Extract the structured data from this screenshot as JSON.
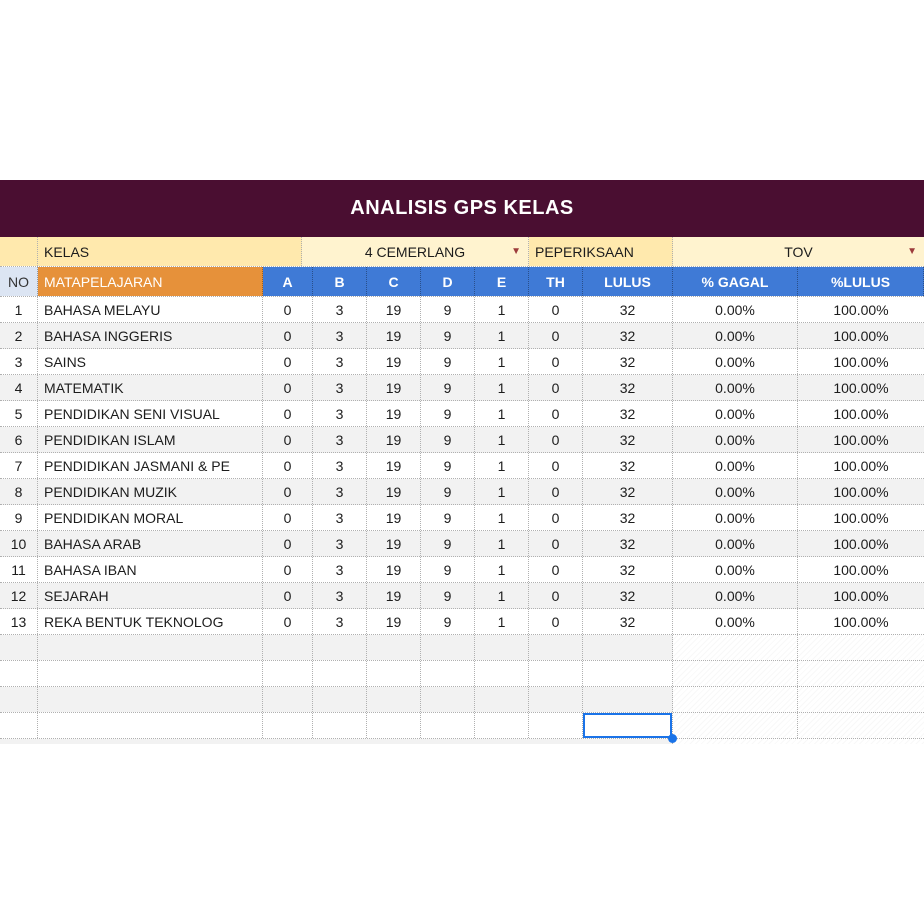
{
  "banner": {
    "title": "ANALISIS GPS KELAS"
  },
  "icons": {
    "dropdown": "▼"
  },
  "filter_row": {
    "kelas_label": "KELAS",
    "kelas_value": "4 CEMERLANG",
    "exam_label": "PEPERIKSAAN",
    "exam_value": "TOV"
  },
  "table": {
    "headers": [
      "NO",
      "MATAPELAJARAN",
      "A",
      "B",
      "C",
      "D",
      "E",
      "TH",
      "LULUS",
      "% GAGAL",
      "%LULUS"
    ],
    "rows": [
      {
        "no": "1",
        "subject": "BAHASA MELAYU",
        "a": "0",
        "b": "3",
        "c": "19",
        "d": "9",
        "e": "1",
        "th": "0",
        "lulus": "32",
        "gagal": "0.00%",
        "lulus_pct": "100.00%"
      },
      {
        "no": "2",
        "subject": "BAHASA INGGERIS",
        "a": "0",
        "b": "3",
        "c": "19",
        "d": "9",
        "e": "1",
        "th": "0",
        "lulus": "32",
        "gagal": "0.00%",
        "lulus_pct": "100.00%"
      },
      {
        "no": "3",
        "subject": "SAINS",
        "a": "0",
        "b": "3",
        "c": "19",
        "d": "9",
        "e": "1",
        "th": "0",
        "lulus": "32",
        "gagal": "0.00%",
        "lulus_pct": "100.00%"
      },
      {
        "no": "4",
        "subject": "MATEMATIK",
        "a": "0",
        "b": "3",
        "c": "19",
        "d": "9",
        "e": "1",
        "th": "0",
        "lulus": "32",
        "gagal": "0.00%",
        "lulus_pct": "100.00%"
      },
      {
        "no": "5",
        "subject": "PENDIDIKAN SENI VISUAL",
        "a": "0",
        "b": "3",
        "c": "19",
        "d": "9",
        "e": "1",
        "th": "0",
        "lulus": "32",
        "gagal": "0.00%",
        "lulus_pct": "100.00%"
      },
      {
        "no": "6",
        "subject": "PENDIDIKAN ISLAM",
        "a": "0",
        "b": "3",
        "c": "19",
        "d": "9",
        "e": "1",
        "th": "0",
        "lulus": "32",
        "gagal": "0.00%",
        "lulus_pct": "100.00%"
      },
      {
        "no": "7",
        "subject": "PENDIDIKAN JASMANI & PE",
        "a": "0",
        "b": "3",
        "c": "19",
        "d": "9",
        "e": "1",
        "th": "0",
        "lulus": "32",
        "gagal": "0.00%",
        "lulus_pct": "100.00%"
      },
      {
        "no": "8",
        "subject": "PENDIDIKAN MUZIK",
        "a": "0",
        "b": "3",
        "c": "19",
        "d": "9",
        "e": "1",
        "th": "0",
        "lulus": "32",
        "gagal": "0.00%",
        "lulus_pct": "100.00%"
      },
      {
        "no": "9",
        "subject": "PENDIDIKAN MORAL",
        "a": "0",
        "b": "3",
        "c": "19",
        "d": "9",
        "e": "1",
        "th": "0",
        "lulus": "32",
        "gagal": "0.00%",
        "lulus_pct": "100.00%"
      },
      {
        "no": "10",
        "subject": "BAHASA ARAB",
        "a": "0",
        "b": "3",
        "c": "19",
        "d": "9",
        "e": "1",
        "th": "0",
        "lulus": "32",
        "gagal": "0.00%",
        "lulus_pct": "100.00%"
      },
      {
        "no": "11",
        "subject": "BAHASA IBAN",
        "a": "0",
        "b": "3",
        "c": "19",
        "d": "9",
        "e": "1",
        "th": "0",
        "lulus": "32",
        "gagal": "0.00%",
        "lulus_pct": "100.00%"
      },
      {
        "no": "12",
        "subject": "SEJARAH",
        "a": "0",
        "b": "3",
        "c": "19",
        "d": "9",
        "e": "1",
        "th": "0",
        "lulus": "32",
        "gagal": "0.00%",
        "lulus_pct": "100.00%"
      },
      {
        "no": "13",
        "subject": "REKA BENTUK TEKNOLOG",
        "a": "0",
        "b": "3",
        "c": "19",
        "d": "9",
        "e": "1",
        "th": "0",
        "lulus": "32",
        "gagal": "0.00%",
        "lulus_pct": "100.00%"
      }
    ],
    "empty_rows": 4
  },
  "colors": {
    "banner_bg": "#4a0e31",
    "header_blue": "#3f7ad6",
    "orange": "#e6913a",
    "no_header_bg": "#dce5f3",
    "label_cream": "#ffe9ad",
    "value_cream": "#fff3cf",
    "band": "#f2f2f2",
    "selection": "#1a73e8",
    "arrow": "#9c3b3b"
  }
}
